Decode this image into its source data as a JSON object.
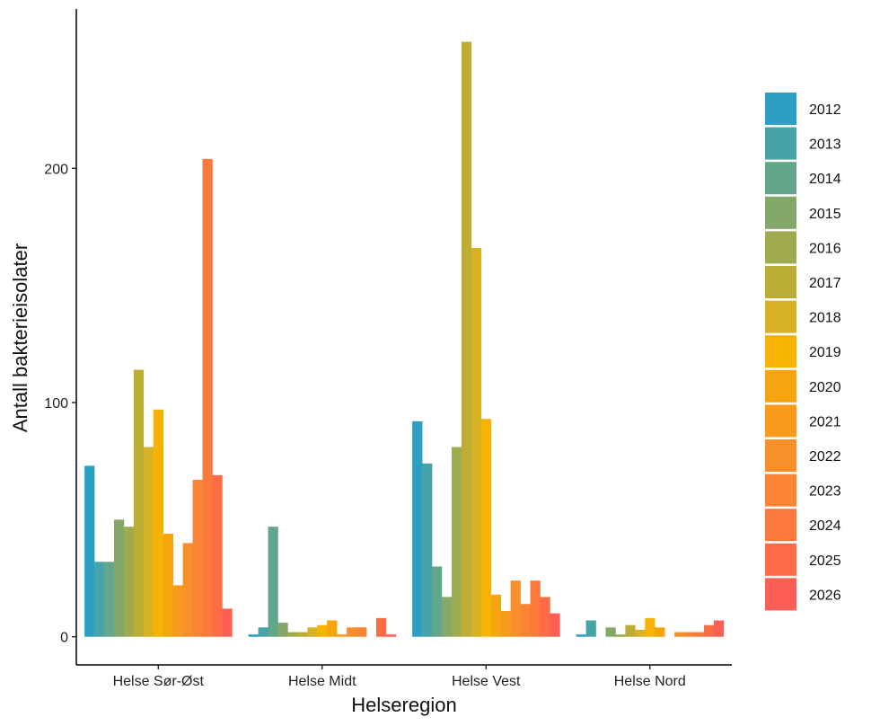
{
  "chart_data": {
    "type": "bar",
    "title": "",
    "xlabel": "Helseregion",
    "ylabel": "Antall bakterieisolater",
    "ylim": [
      -12,
      268
    ],
    "yticks": [
      0,
      100,
      200
    ],
    "grid": false,
    "legend_position": "right",
    "categories": [
      "Helse Sør-Øst",
      "Helse Midt",
      "Helse Vest",
      "Helse Nord"
    ],
    "series": [
      {
        "name": "2012",
        "color": "#2CA0C4",
        "values": [
          73,
          1,
          92,
          1
        ]
      },
      {
        "name": "2013",
        "color": "#46A4A8",
        "values": [
          32,
          4,
          74,
          7
        ]
      },
      {
        "name": "2014",
        "color": "#62A68C",
        "values": [
          32,
          47,
          30,
          0
        ]
      },
      {
        "name": "2015",
        "color": "#84A76A",
        "values": [
          50,
          6,
          17,
          4
        ]
      },
      {
        "name": "2016",
        "color": "#9FAB4E",
        "values": [
          47,
          2,
          81,
          1
        ]
      },
      {
        "name": "2017",
        "color": "#BCAE35",
        "values": [
          114,
          2,
          254,
          5
        ]
      },
      {
        "name": "2018",
        "color": "#D8B225",
        "values": [
          81,
          4,
          166,
          3
        ]
      },
      {
        "name": "2019",
        "color": "#F6B304",
        "values": [
          97,
          5,
          93,
          8
        ]
      },
      {
        "name": "2020",
        "color": "#F7A50E",
        "values": [
          44,
          7,
          18,
          4
        ]
      },
      {
        "name": "2021",
        "color": "#F89A1C",
        "values": [
          22,
          1,
          11,
          0
        ]
      },
      {
        "name": "2022",
        "color": "#F98F29",
        "values": [
          40,
          4,
          24,
          2
        ]
      },
      {
        "name": "2023",
        "color": "#FA8434",
        "values": [
          67,
          4,
          14,
          2
        ]
      },
      {
        "name": "2024",
        "color": "#FB7A3B",
        "values": [
          204,
          0,
          24,
          2
        ]
      },
      {
        "name": "2025",
        "color": "#FD6C47",
        "values": [
          69,
          8,
          17,
          5
        ]
      },
      {
        "name": "2026",
        "color": "#FE5F55",
        "values": [
          12,
          1,
          10,
          7
        ]
      }
    ]
  }
}
